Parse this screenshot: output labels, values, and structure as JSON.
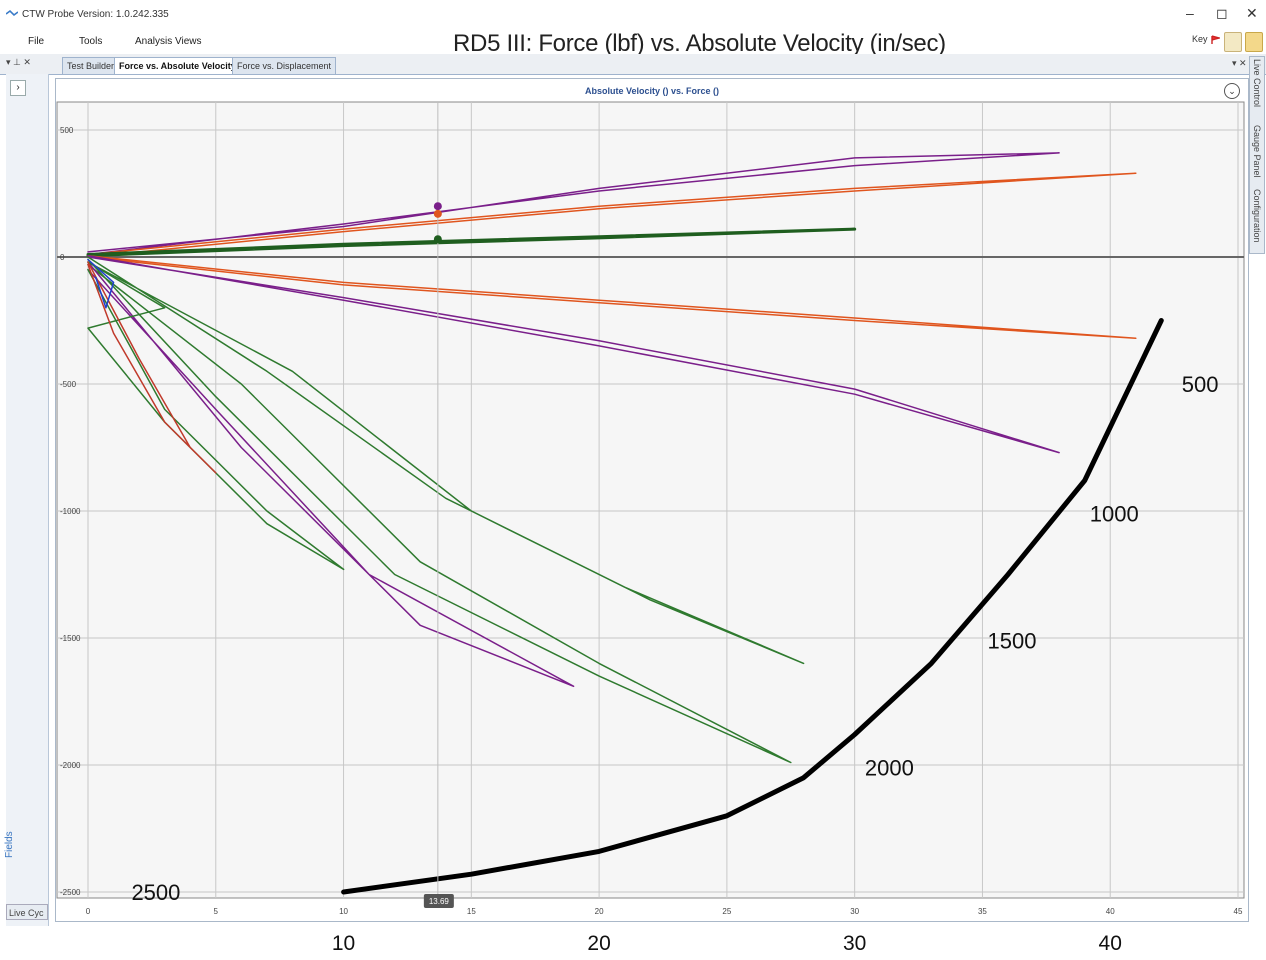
{
  "window": {
    "app_title": "CTW Probe Version: 1.0.242.335",
    "minimize": "–",
    "maximize": "◻",
    "close": "✕"
  },
  "menu": {
    "items": [
      "File",
      "Tools",
      "Analysis Views"
    ]
  },
  "overlay_title": "RD5 III: Force (lbf) vs. Absolute Velocity (in/sec)",
  "key_label": "Key",
  "tabs": {
    "panel_controls": "▾ ⊥ ✕",
    "items": [
      {
        "label": "Test Builder",
        "active": false
      },
      {
        "label": "Force vs. Absolute Velocity",
        "active": true
      },
      {
        "label": "Force vs. Displacement",
        "active": false
      }
    ],
    "close_right": "▾ ✕"
  },
  "left_panel": {
    "fields_label": "Fields",
    "live_label": "Live Cyc"
  },
  "right_panel": {
    "tabs": [
      "Live Control",
      "Gauge Panel",
      "Configuration"
    ]
  },
  "chart": {
    "header": "Absolute Velocity () vs. Force ()",
    "cursor_value": "13.69"
  },
  "chart_data": {
    "type": "line",
    "xlim": [
      0,
      45
    ],
    "ylim": [
      -2540,
      500
    ],
    "x_ticks": [
      0,
      5,
      10,
      15,
      20,
      25,
      30,
      35,
      40,
      45
    ],
    "y_ticks": [
      500,
      0,
      -500,
      -1000,
      -1500,
      -2000,
      -2500
    ],
    "grid": true,
    "colors": {
      "purple": "#7a1f8a",
      "orange": "#e0551e",
      "green": "#2f7a2f",
      "darkgreen": "#1f5e1f",
      "red": "#c03a2b",
      "blue": "#1f3fcf",
      "black": "#000000"
    },
    "series": [
      {
        "color": "purple",
        "points": [
          [
            0,
            20
          ],
          [
            10,
            120
          ],
          [
            20,
            270
          ],
          [
            30,
            390
          ],
          [
            38,
            410
          ],
          [
            30,
            360
          ],
          [
            20,
            260
          ],
          [
            10,
            130
          ],
          [
            0,
            10
          ]
        ]
      },
      {
        "color": "orange",
        "points": [
          [
            0,
            10
          ],
          [
            10,
            110
          ],
          [
            20,
            200
          ],
          [
            30,
            270
          ],
          [
            41,
            330
          ],
          [
            30,
            260
          ],
          [
            20,
            190
          ],
          [
            10,
            100
          ],
          [
            0,
            0
          ]
        ]
      },
      {
        "color": "darkgreen",
        "points": [
          [
            0,
            10
          ],
          [
            10,
            50
          ],
          [
            20,
            80
          ],
          [
            30,
            110
          ],
          [
            20,
            75
          ],
          [
            10,
            45
          ],
          [
            0,
            5
          ]
        ]
      },
      {
        "color": "orange",
        "points": [
          [
            0,
            0
          ],
          [
            10,
            -110
          ],
          [
            20,
            -180
          ],
          [
            30,
            -250
          ],
          [
            41,
            -320
          ],
          [
            30,
            -240
          ],
          [
            20,
            -170
          ],
          [
            10,
            -100
          ],
          [
            0,
            5
          ]
        ]
      },
      {
        "color": "purple",
        "points": [
          [
            0,
            0
          ],
          [
            10,
            -160
          ],
          [
            20,
            -330
          ],
          [
            30,
            -520
          ],
          [
            38,
            -770
          ],
          [
            30,
            -540
          ],
          [
            20,
            -350
          ],
          [
            10,
            -170
          ],
          [
            0,
            5
          ]
        ]
      },
      {
        "color": "green",
        "points": [
          [
            0,
            -20
          ],
          [
            8,
            -450
          ],
          [
            15,
            -1000
          ],
          [
            22,
            -1350
          ],
          [
            28,
            -1600
          ],
          [
            21,
            -1300
          ],
          [
            14,
            -950
          ],
          [
            7,
            -450
          ],
          [
            0,
            0
          ]
        ]
      },
      {
        "color": "green",
        "points": [
          [
            0,
            -30
          ],
          [
            6,
            -500
          ],
          [
            13,
            -1200
          ],
          [
            20,
            -1600
          ],
          [
            27.5,
            -1990
          ],
          [
            20,
            -1650
          ],
          [
            12,
            -1250
          ],
          [
            5,
            -550
          ],
          [
            0,
            -10
          ]
        ]
      },
      {
        "color": "purple",
        "points": [
          [
            0,
            -50
          ],
          [
            5,
            -600
          ],
          [
            11,
            -1250
          ],
          [
            19,
            -1690
          ],
          [
            13,
            -1450
          ],
          [
            6,
            -750
          ],
          [
            0,
            -20
          ]
        ]
      },
      {
        "color": "green",
        "points": [
          [
            0,
            -50
          ],
          [
            3,
            -600
          ],
          [
            7,
            -1000
          ],
          [
            10,
            -1230
          ],
          [
            7,
            -1050
          ],
          [
            3,
            -650
          ],
          [
            0,
            -280
          ],
          [
            3,
            -200
          ],
          [
            0,
            -20
          ]
        ]
      },
      {
        "color": "red",
        "points": [
          [
            0,
            -20
          ],
          [
            2,
            -400
          ],
          [
            4,
            -750
          ],
          [
            5,
            -850
          ],
          [
            3,
            -650
          ],
          [
            1,
            -300
          ],
          [
            0,
            -30
          ]
        ]
      },
      {
        "color": "blue",
        "points": [
          [
            0,
            -10
          ],
          [
            1,
            -100
          ],
          [
            0.7,
            -200
          ],
          [
            0.3,
            -80
          ]
        ]
      },
      {
        "color": "black",
        "points": [
          [
            10,
            -2500
          ],
          [
            15,
            -2430
          ],
          [
            20,
            -2340
          ],
          [
            25,
            -2200
          ],
          [
            28,
            -2050
          ],
          [
            30,
            -1880
          ],
          [
            33,
            -1600
          ],
          [
            36,
            -1250
          ],
          [
            39,
            -880
          ],
          [
            42,
            -250
          ]
        ]
      }
    ],
    "markers": [
      {
        "x": 13.69,
        "y": 200,
        "color": "purple"
      },
      {
        "x": 13.69,
        "y": 170,
        "color": "orange"
      },
      {
        "x": 13.69,
        "y": 70,
        "color": "darkgreen"
      }
    ],
    "annotations": [
      {
        "text": "500",
        "x": 42.8,
        "y": -500
      },
      {
        "text": "1000",
        "x": 39.2,
        "y": -1010
      },
      {
        "text": "1500",
        "x": 35.2,
        "y": -1510
      },
      {
        "text": "2000",
        "x": 30.4,
        "y": -2010
      },
      {
        "text": "2500",
        "x": 1.7,
        "y": -2500
      }
    ],
    "bottom_labels": [
      {
        "text": "10",
        "x": 10
      },
      {
        "text": "20",
        "x": 20
      },
      {
        "text": "30",
        "x": 30
      },
      {
        "text": "40",
        "x": 40
      }
    ]
  }
}
